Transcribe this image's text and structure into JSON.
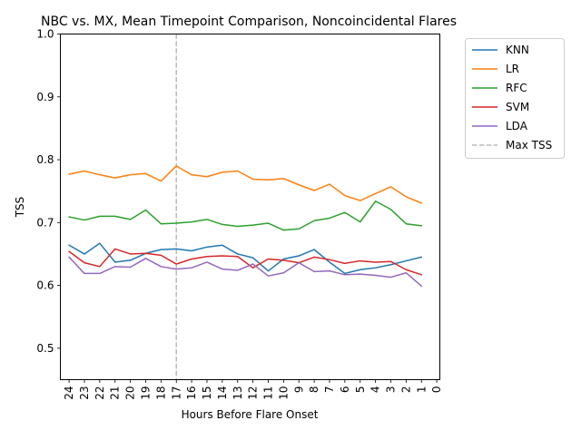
{
  "chart_data": {
    "type": "line",
    "title": "NBC vs. MX, Mean Timepoint Comparison, Noncoincidental Flares",
    "xlabel": "Hours Before Flare Onset",
    "ylabel": "TSS",
    "x": [
      24,
      23,
      22,
      21,
      20,
      19,
      18,
      17,
      16,
      15,
      14,
      13,
      12,
      11,
      10,
      9,
      8,
      7,
      6,
      5,
      4,
      3,
      2,
      1
    ],
    "xticks": [
      24,
      23,
      22,
      21,
      20,
      19,
      18,
      17,
      16,
      15,
      14,
      13,
      12,
      11,
      10,
      9,
      8,
      7,
      6,
      5,
      4,
      3,
      2,
      1,
      0
    ],
    "xlim": [
      24.57,
      -0.2
    ],
    "yticks": [
      "0.5",
      "0.6",
      "0.7",
      "0.8",
      "0.9",
      "1.0"
    ],
    "ylim": [
      0.45,
      1.0
    ],
    "grid": false,
    "legend_position": "outside upper right",
    "series": [
      {
        "name": "KNN",
        "color": "#1f77b4",
        "values": [
          0.664,
          0.65,
          0.667,
          0.637,
          0.64,
          0.651,
          0.657,
          0.658,
          0.655,
          0.661,
          0.664,
          0.65,
          0.644,
          0.623,
          0.642,
          0.647,
          0.657,
          0.637,
          0.619,
          0.625,
          0.628,
          0.633,
          0.639,
          0.645
        ]
      },
      {
        "name": "LR",
        "color": "#ff7f0e",
        "values": [
          0.777,
          0.782,
          0.776,
          0.771,
          0.776,
          0.778,
          0.766,
          0.79,
          0.776,
          0.773,
          0.78,
          0.782,
          0.769,
          0.768,
          0.77,
          0.76,
          0.751,
          0.761,
          0.743,
          0.735,
          0.746,
          0.757,
          0.741,
          0.731
        ]
      },
      {
        "name": "RFC",
        "color": "#2ca02c",
        "values": [
          0.709,
          0.704,
          0.71,
          0.71,
          0.705,
          0.72,
          0.698,
          0.699,
          0.701,
          0.705,
          0.697,
          0.694,
          0.696,
          0.699,
          0.688,
          0.69,
          0.703,
          0.707,
          0.716,
          0.701,
          0.734,
          0.721,
          0.698,
          0.695
        ]
      },
      {
        "name": "SVM",
        "color": "#d62728",
        "values": [
          0.654,
          0.636,
          0.63,
          0.658,
          0.65,
          0.651,
          0.648,
          0.634,
          0.642,
          0.646,
          0.647,
          0.646,
          0.628,
          0.642,
          0.64,
          0.636,
          0.645,
          0.641,
          0.635,
          0.639,
          0.637,
          0.638,
          0.625,
          0.617
        ]
      },
      {
        "name": "LDA",
        "color": "#9467bd",
        "values": [
          0.645,
          0.619,
          0.619,
          0.63,
          0.629,
          0.643,
          0.63,
          0.626,
          0.628,
          0.637,
          0.626,
          0.624,
          0.634,
          0.615,
          0.62,
          0.636,
          0.622,
          0.623,
          0.617,
          0.618,
          0.616,
          0.613,
          0.62,
          0.599
        ]
      }
    ],
    "reference_line": {
      "name": "Max TSS",
      "x": 17,
      "color": "#bbbbbb",
      "style": "dashed"
    }
  }
}
